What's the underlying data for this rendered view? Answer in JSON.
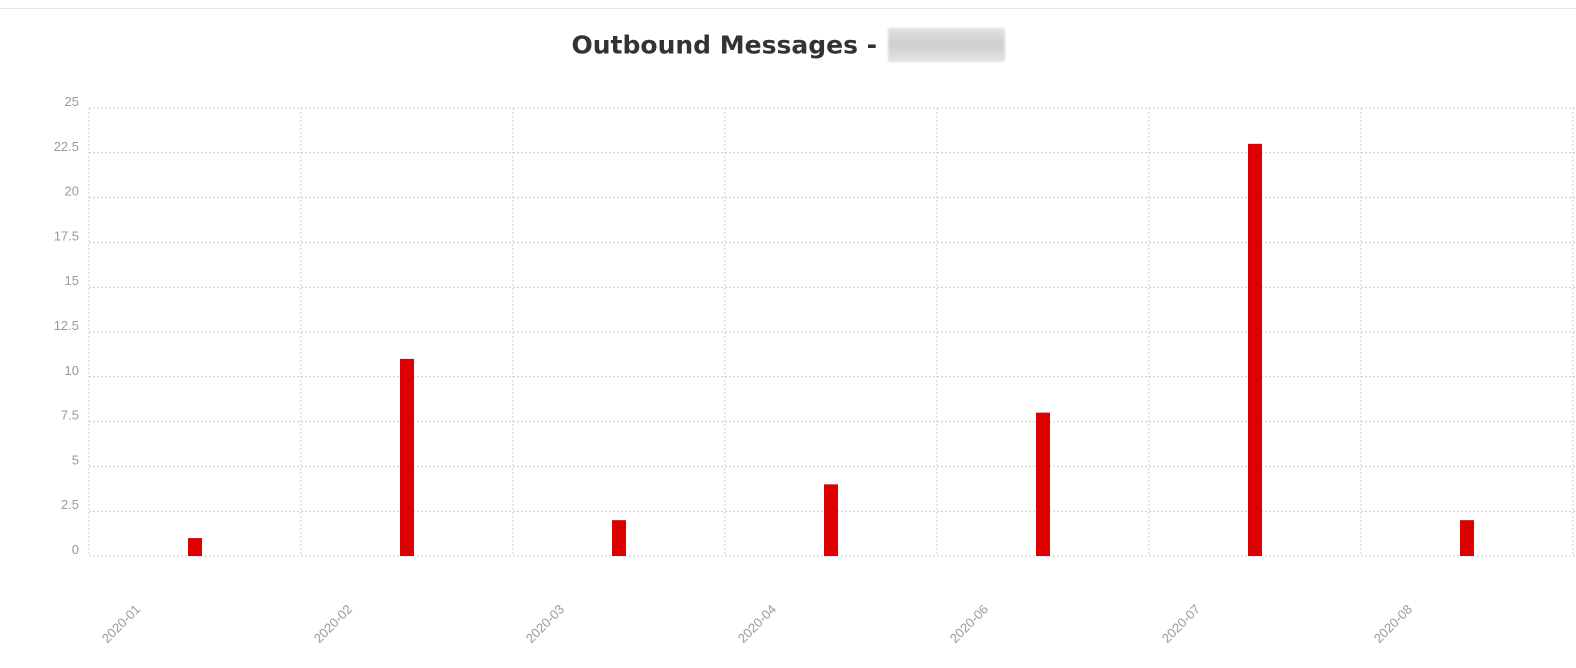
{
  "colors": {
    "bar": "#dd0000",
    "grid": "#cccccc",
    "tick_text": "#9a9a9a",
    "title_text": "#333333"
  },
  "chart_data": {
    "type": "bar",
    "title": "Outbound Messages -",
    "title_suffix_redacted": true,
    "xlabel": "",
    "ylabel": "",
    "categories": [
      "2020-01",
      "2020-02",
      "2020-03",
      "2020-04",
      "2020-06",
      "2020-07",
      "2020-08"
    ],
    "values": [
      1,
      11,
      2,
      4,
      8,
      23,
      2
    ],
    "ylim": [
      0,
      25
    ],
    "yticks": [
      0,
      2.5,
      5,
      7.5,
      10,
      12.5,
      15,
      17.5,
      20,
      22.5,
      25
    ],
    "ytick_labels": [
      "0",
      "2.5",
      "5",
      "7.5",
      "10",
      "12.5",
      "15",
      "17.5",
      "20",
      "22.5",
      "25"
    ],
    "grid": true,
    "grid_style": "dotted",
    "legend": "none",
    "xtick_rotation": -45
  }
}
